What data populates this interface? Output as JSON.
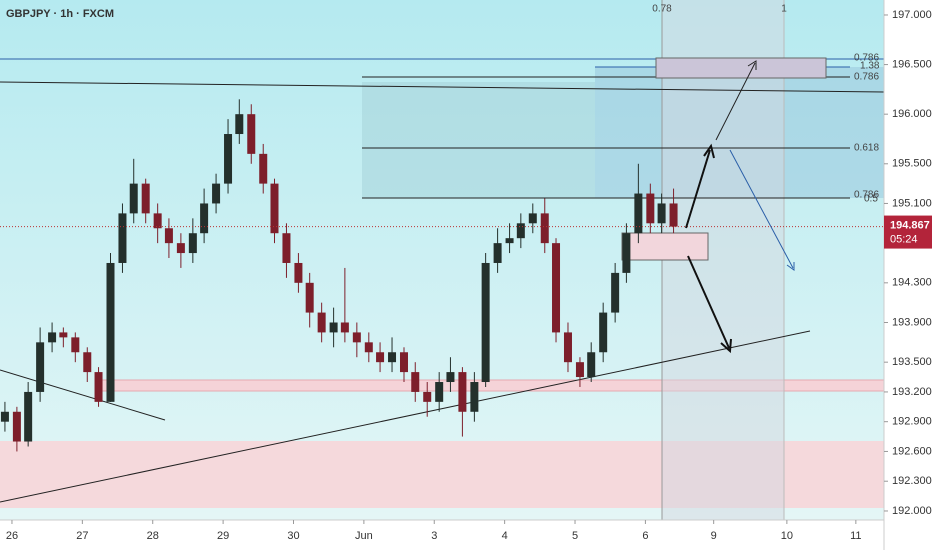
{
  "chart_data": {
    "type": "candlestick",
    "title": "GBPJPY · 1h · FXCM",
    "x": [
      -0.1,
      0.07,
      0.23,
      0.4,
      0.57,
      0.73,
      0.9,
      1.07,
      1.23,
      1.4,
      1.57,
      1.73,
      1.9,
      2.07,
      2.23,
      2.4,
      2.57,
      2.73,
      2.9,
      3.07,
      3.23,
      3.4,
      3.57,
      3.73,
      3.9,
      4.07,
      4.23,
      4.4,
      4.57,
      4.73,
      4.9,
      5.07,
      5.23,
      5.4,
      5.57,
      5.73,
      5.9,
      6.07,
      6.23,
      6.4,
      6.57,
      6.73,
      6.9,
      7.07,
      7.23,
      7.4,
      7.57,
      7.73,
      7.9,
      8.07,
      8.23,
      8.4,
      8.57,
      8.73,
      8.9,
      9.07,
      9.23,
      9.4
    ],
    "open": [
      192.9,
      193.0,
      192.7,
      193.2,
      193.7,
      193.8,
      193.75,
      193.6,
      193.4,
      193.1,
      194.5,
      195.0,
      195.3,
      195.0,
      194.85,
      194.7,
      194.6,
      194.8,
      195.1,
      195.3,
      195.8,
      196.0,
      195.6,
      195.3,
      194.8,
      194.5,
      194.3,
      194.0,
      193.8,
      193.9,
      193.8,
      193.7,
      193.6,
      193.5,
      193.6,
      193.4,
      193.2,
      193.1,
      193.3,
      193.4,
      193.0,
      193.3,
      194.5,
      194.7,
      194.75,
      194.9,
      195.0,
      194.7,
      193.8,
      193.5,
      193.35,
      193.6,
      194.0,
      194.4,
      194.8,
      195.2,
      194.9,
      195.1
    ],
    "high": [
      193.1,
      193.05,
      193.3,
      193.85,
      193.9,
      193.85,
      193.8,
      193.65,
      193.45,
      194.6,
      195.1,
      195.55,
      195.35,
      195.1,
      194.95,
      194.8,
      194.95,
      195.25,
      195.4,
      195.95,
      196.15,
      196.1,
      195.7,
      195.35,
      194.9,
      194.6,
      194.4,
      194.1,
      194.05,
      194.45,
      193.9,
      193.8,
      193.7,
      193.75,
      193.65,
      193.5,
      193.3,
      193.4,
      193.55,
      193.45,
      193.4,
      194.6,
      194.85,
      194.9,
      195.0,
      195.1,
      195.15,
      194.75,
      193.9,
      193.55,
      193.7,
      194.1,
      194.5,
      194.9,
      195.5,
      195.3,
      195.2,
      195.25
    ],
    "low": [
      192.8,
      192.6,
      192.65,
      193.1,
      193.6,
      193.65,
      193.5,
      193.3,
      193.05,
      193.1,
      194.4,
      194.9,
      194.9,
      194.7,
      194.55,
      194.45,
      194.5,
      194.7,
      195.0,
      195.2,
      195.7,
      195.5,
      195.2,
      194.7,
      194.35,
      194.2,
      193.85,
      193.7,
      193.65,
      193.7,
      193.55,
      193.5,
      193.4,
      193.4,
      193.3,
      193.1,
      192.95,
      193.0,
      193.2,
      192.75,
      192.9,
      193.25,
      194.4,
      194.6,
      194.65,
      194.8,
      194.6,
      193.7,
      193.4,
      193.25,
      193.3,
      193.5,
      193.9,
      194.3,
      194.7,
      194.8,
      194.8,
      194.8
    ],
    "close": [
      193.0,
      192.7,
      193.2,
      193.7,
      193.8,
      193.75,
      193.6,
      193.4,
      193.1,
      194.5,
      195.0,
      195.3,
      195.0,
      194.85,
      194.7,
      194.6,
      194.8,
      195.1,
      195.3,
      195.8,
      196.0,
      195.6,
      195.3,
      194.8,
      194.5,
      194.3,
      194.0,
      193.8,
      193.9,
      193.8,
      193.7,
      193.6,
      193.5,
      193.6,
      193.4,
      193.2,
      193.1,
      193.3,
      193.4,
      193.0,
      193.3,
      194.5,
      194.7,
      194.75,
      194.9,
      195.0,
      194.7,
      193.8,
      193.5,
      193.35,
      193.6,
      194.0,
      194.4,
      194.8,
      195.2,
      194.9,
      195.1,
      194.867
    ],
    "up_color": "#24302c",
    "down_color": "#7d1f2b",
    "xlim": [
      -0.17,
      12.39
    ],
    "xticks": [
      {
        "value": 0,
        "label": "26"
      },
      {
        "value": 1,
        "label": "27"
      },
      {
        "value": 2,
        "label": "28"
      },
      {
        "value": 3,
        "label": "29"
      },
      {
        "value": 4,
        "label": "30"
      },
      {
        "value": 5,
        "label": "Jun"
      },
      {
        "value": 6,
        "label": "3"
      },
      {
        "value": 7,
        "label": "4"
      },
      {
        "value": 8,
        "label": "5"
      },
      {
        "value": 9,
        "label": "6"
      },
      {
        "value": 9.97,
        "label": "9"
      },
      {
        "value": 11.01,
        "label": "10"
      },
      {
        "value": 11.99,
        "label": "11"
      }
    ],
    "ylim": [
      191.909,
      197.151
    ],
    "yticks": [
      {
        "value": 197,
        "label": "197.000"
      },
      {
        "value": 196.5,
        "label": "196.500"
      },
      {
        "value": 196,
        "label": "196.000"
      },
      {
        "value": 195.5,
        "label": "195.500"
      },
      {
        "value": 195.1,
        "label": "195.100"
      },
      {
        "value": 194.3,
        "label": "194.300"
      },
      {
        "value": 193.9,
        "label": "193.900"
      },
      {
        "value": 193.5,
        "label": "193.500"
      },
      {
        "value": 193.2,
        "label": "193.200"
      },
      {
        "value": 192.9,
        "label": "192.900"
      },
      {
        "value": 192.6,
        "label": "192.600"
      },
      {
        "value": 192.3,
        "label": "192.300"
      },
      {
        "value": 192,
        "label": "192.000"
      }
    ],
    "last_price": 194.867,
    "countdown": "05:24",
    "annotations": [
      "0.78",
      "1",
      "0.786",
      "1.38",
      "0.786",
      "0.618",
      "0.786",
      "0.5"
    ]
  }
}
